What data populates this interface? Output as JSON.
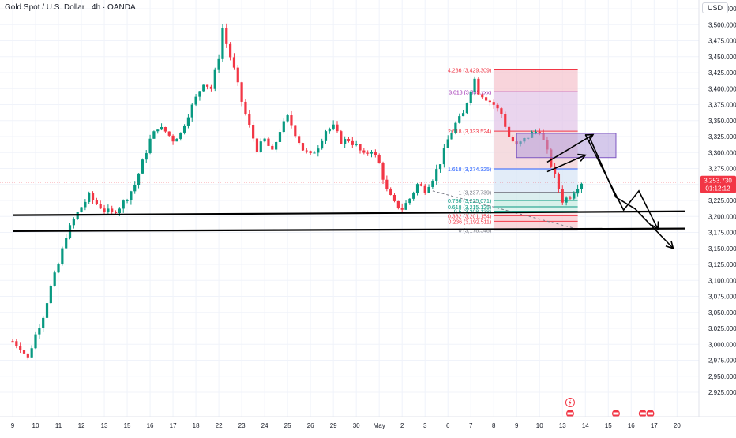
{
  "header": {
    "symbol_title": "Gold Spot / U.S. Dollar · 4h · OANDA",
    "currency": "USD"
  },
  "price_tag": {
    "price": "3,253.730",
    "countdown": "01:12:12",
    "color": "#f23645"
  },
  "colors": {
    "bull": "#089981",
    "bear": "#f23645",
    "grid": "#f0f3fa",
    "axis_text": "#131722"
  },
  "chart_data": {
    "type": "candlestick",
    "symbol": "Gold Spot / U.S. Dollar",
    "interval": "4h",
    "source": "OANDA",
    "ylim": [
      2925,
      3525
    ],
    "yticks": [
      2925,
      2950,
      2975,
      3000,
      3025,
      3050,
      3075,
      3100,
      3125,
      3150,
      3175,
      3200,
      3225,
      3250,
      3275,
      3300,
      3325,
      3350,
      3375,
      3400,
      3425,
      3450,
      3475,
      3500,
      3525
    ],
    "ytick_labels": [
      "2,925.000",
      "2,950.000",
      "2,975.000",
      "3,000.000",
      "3,025.000",
      "3,050.000",
      "3,075.000",
      "3,100.000",
      "3,125.000",
      "3,150.000",
      "3,175.000",
      "3,200.000",
      "3,225.000",
      "3,250.000",
      "3,275.000",
      "3,300.000",
      "3,325.000",
      "3,350.000",
      "3,375.000",
      "3,400.000",
      "3,425.000",
      "3,450.000",
      "3,475.000",
      "3,500.000",
      "3,525.000"
    ],
    "xticks": [
      {
        "label": "9",
        "t": 0
      },
      {
        "label": "10",
        "t": 6
      },
      {
        "label": "11",
        "t": 12
      },
      {
        "label": "12",
        "t": 18
      },
      {
        "label": "13",
        "t": 24
      },
      {
        "label": "15",
        "t": 30
      },
      {
        "label": "16",
        "t": 36
      },
      {
        "label": "17",
        "t": 42
      },
      {
        "label": "18",
        "t": 48
      },
      {
        "label": "22",
        "t": 54
      },
      {
        "label": "23",
        "t": 60
      },
      {
        "label": "24",
        "t": 66
      },
      {
        "label": "25",
        "t": 72
      },
      {
        "label": "26",
        "t": 78
      },
      {
        "label": "29",
        "t": 84
      },
      {
        "label": "30",
        "t": 90
      },
      {
        "label": "May",
        "t": 96
      },
      {
        "label": "2",
        "t": 102
      },
      {
        "label": "3",
        "t": 108
      },
      {
        "label": "6",
        "t": 114
      },
      {
        "label": "7",
        "t": 120
      },
      {
        "label": "8",
        "t": 126
      },
      {
        "label": "9",
        "t": 132
      },
      {
        "label": "10",
        "t": 138
      },
      {
        "label": "13",
        "t": 144
      },
      {
        "label": "14",
        "t": 150
      },
      {
        "label": "15",
        "t": 156
      },
      {
        "label": "16",
        "t": 162
      },
      {
        "label": "17",
        "t": 168
      },
      {
        "label": "20",
        "t": 174
      }
    ],
    "close_path": [
      [
        0,
        3005
      ],
      [
        2,
        2995
      ],
      [
        4,
        2978
      ],
      [
        6,
        3015
      ],
      [
        8,
        3045
      ],
      [
        10,
        3090
      ],
      [
        12,
        3125
      ],
      [
        14,
        3170
      ],
      [
        16,
        3195
      ],
      [
        18,
        3215
      ],
      [
        20,
        3232
      ],
      [
        22,
        3220
      ],
      [
        24,
        3210
      ],
      [
        26,
        3205
      ],
      [
        28,
        3215
      ],
      [
        30,
        3230
      ],
      [
        32,
        3250
      ],
      [
        34,
        3285
      ],
      [
        36,
        3320
      ],
      [
        38,
        3340
      ],
      [
        40,
        3333
      ],
      [
        42,
        3320
      ],
      [
        44,
        3330
      ],
      [
        46,
        3360
      ],
      [
        48,
        3385
      ],
      [
        50,
        3410
      ],
      [
        52,
        3400
      ],
      [
        54,
        3450
      ],
      [
        55,
        3495
      ],
      [
        56,
        3470
      ],
      [
        58,
        3430
      ],
      [
        60,
        3380
      ],
      [
        62,
        3340
      ],
      [
        64,
        3305
      ],
      [
        66,
        3320
      ],
      [
        68,
        3300
      ],
      [
        70,
        3335
      ],
      [
        72,
        3355
      ],
      [
        74,
        3330
      ],
      [
        76,
        3305
      ],
      [
        78,
        3295
      ],
      [
        80,
        3310
      ],
      [
        82,
        3335
      ],
      [
        84,
        3340
      ],
      [
        86,
        3318
      ],
      [
        88,
        3320
      ],
      [
        90,
        3310
      ],
      [
        92,
        3295
      ],
      [
        94,
        3305
      ],
      [
        96,
        3282
      ],
      [
        98,
        3240
      ],
      [
        100,
        3220
      ],
      [
        102,
        3212
      ],
      [
        104,
        3228
      ],
      [
        106,
        3250
      ],
      [
        108,
        3242
      ],
      [
        110,
        3260
      ],
      [
        112,
        3285
      ],
      [
        114,
        3320
      ],
      [
        116,
        3345
      ],
      [
        118,
        3360
      ],
      [
        120,
        3400
      ],
      [
        121,
        3415
      ],
      [
        122,
        3395
      ],
      [
        124,
        3385
      ],
      [
        126,
        3375
      ],
      [
        128,
        3360
      ],
      [
        130,
        3325
      ],
      [
        132,
        3310
      ],
      [
        134,
        3320
      ],
      [
        136,
        3330
      ],
      [
        138,
        3335
      ],
      [
        140,
        3300
      ],
      [
        142,
        3262
      ],
      [
        144,
        3225
      ],
      [
        146,
        3232
      ],
      [
        148,
        3248
      ],
      [
        149,
        3253.73
      ]
    ],
    "fibonacci": {
      "levels": [
        {
          "ratio": "4.236",
          "price": 3429.309,
          "label": "4.236 (3,429.309)"
        },
        {
          "ratio": "3.618",
          "price": 3395.0,
          "label": "3.618 (3,395.xxx)"
        },
        {
          "ratio": "2.618",
          "price": 3333.524,
          "label": "2.618 (3,333.524)"
        },
        {
          "ratio": "1.618",
          "price": 3274.325,
          "label": "1.618 (3,274.325)"
        },
        {
          "ratio": "1",
          "price": 3237.739,
          "label": "1 (3,237.739)"
        },
        {
          "ratio": "0.786",
          "price": 3225.071,
          "label": "0.786 (3,225.071)"
        },
        {
          "ratio": "0.618",
          "price": 3215.125,
          "label": "0.618 (3,215.125)"
        },
        {
          "ratio": "0.5",
          "price": 3208.138,
          "label": "0.5 (3,208.138)"
        },
        {
          "ratio": "0.382",
          "price": 3201.154,
          "label": "0.382 (3,201.154)"
        },
        {
          "ratio": "0.236",
          "price": 3192.511,
          "label": "0.236 (3,192.511)"
        },
        {
          "ratio": "0",
          "price": 3178.548,
          "label": "0 (3,178.548)"
        }
      ]
    },
    "support_lines": [
      {
        "name": "upper-support",
        "t0": 0,
        "p0": 3202,
        "t1": 176,
        "p1": 3208
      },
      {
        "name": "lower-support",
        "t0": 0,
        "p0": 3177,
        "t1": 176,
        "p1": 3181
      }
    ],
    "projection_arrows": [
      {
        "name": "arrow-up-1",
        "points": [
          [
            140,
            3270
          ],
          [
            150,
            3296
          ]
        ]
      },
      {
        "name": "arrow-up-2",
        "points": [
          [
            140,
            3285
          ],
          [
            152,
            3328
          ]
        ]
      },
      {
        "name": "arrow-down-1",
        "points": [
          [
            150,
            3328
          ],
          [
            160,
            3210
          ],
          [
            164,
            3240
          ],
          [
            169,
            3180
          ]
        ]
      },
      {
        "name": "arrow-down-2",
        "points": [
          [
            151,
            3325
          ],
          [
            158,
            3230
          ],
          [
            163,
            3212
          ],
          [
            173,
            3150
          ]
        ]
      }
    ],
    "purple_box": {
      "t0": 132,
      "t1": 158,
      "p0": 3292,
      "p1": 3330
    },
    "event_markers": [
      {
        "t": 146,
        "row": 0,
        "kind": "lightning"
      },
      {
        "t": 146,
        "row": 1,
        "kind": "us-flag"
      },
      {
        "t": 158,
        "row": 1,
        "kind": "us-flag"
      },
      {
        "t": 165,
        "row": 1,
        "kind": "us-flag"
      },
      {
        "t": 167,
        "row": 1,
        "kind": "us-flag"
      }
    ]
  }
}
